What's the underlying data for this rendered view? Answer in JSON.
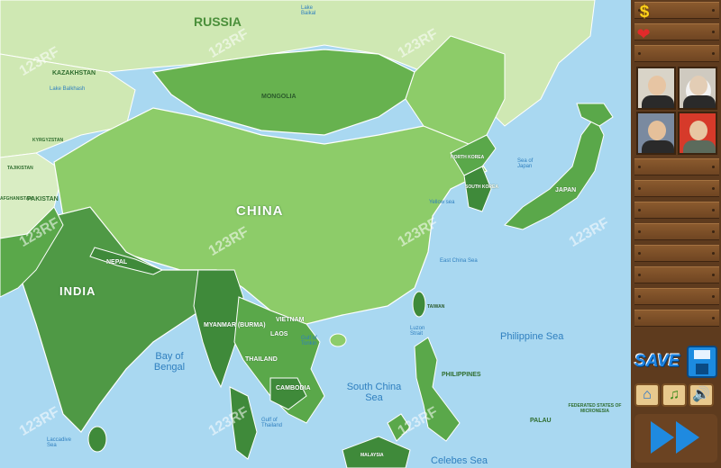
{
  "map": {
    "countries": {
      "russia": "RUSSIA",
      "kazakhstan": "KAZAKHSTAN",
      "mongolia": "MONGOLIA",
      "china": "CHINA",
      "india": "INDIA",
      "pakistan": "PAKISTAN",
      "nepal": "NEPAL",
      "myanmar": "MYANMAR (BURMA)",
      "vietnam": "VIETNAM",
      "laos": "LAOS",
      "thailand": "THAILAND",
      "cambodia": "CAMBODIA",
      "philippines": "PHILIPPINES",
      "japan": "JAPAN",
      "north_korea": "NORTH KOREA",
      "south_korea": "SOUTH KOREA",
      "taiwan": "TAIWAN",
      "palau": "PALAU",
      "micronesia": "FEDERATED STATES OF MICRONESIA",
      "kyrgyzstan": "KYRGYZSTAN",
      "tajikistan": "TAJIKISTAN",
      "afghanistan": "AFGHANISTAN",
      "malaysia": "MALAYSIA"
    },
    "seas": {
      "bay_of_bengal": "Bay of Bengal",
      "south_china_sea": "South China Sea",
      "philippine_sea": "Philippine Sea",
      "celebes_sea": "Celebes Sea",
      "east_china_sea": "East China Sea",
      "yellow_sea": "Yellow sea",
      "sea_of_japan": "Sea of Japan",
      "lake_balkhash": "Lake Balkhash",
      "lake_baikal": "Lake Baikal",
      "laccadive_sea": "Laccadive Sea",
      "gulf_of_thailand": "Gulf of Thailand",
      "gulf_of_tonkin": "Gulf of Tonkin",
      "luzon_strait": "Luzon Strait"
    },
    "watermark": "123RF"
  },
  "panel": {
    "money_value": "",
    "health_value": "",
    "save_label": "SAVE",
    "portraits": [
      "leader-portrait-1",
      "leader-portrait-2",
      "leader-portrait-3",
      "leader-portrait-4"
    ]
  },
  "colors": {
    "ocean": "#a9d8f1",
    "china": "#8dcc69",
    "mongolia": "#67b24f",
    "russia": "#cfe8b3",
    "india": "#4f9945",
    "southeast_asia": "#3f8a3a",
    "korea_japan": "#5aa84a",
    "wood": "#8a5a2e",
    "save_blue": "#1e86e6"
  }
}
